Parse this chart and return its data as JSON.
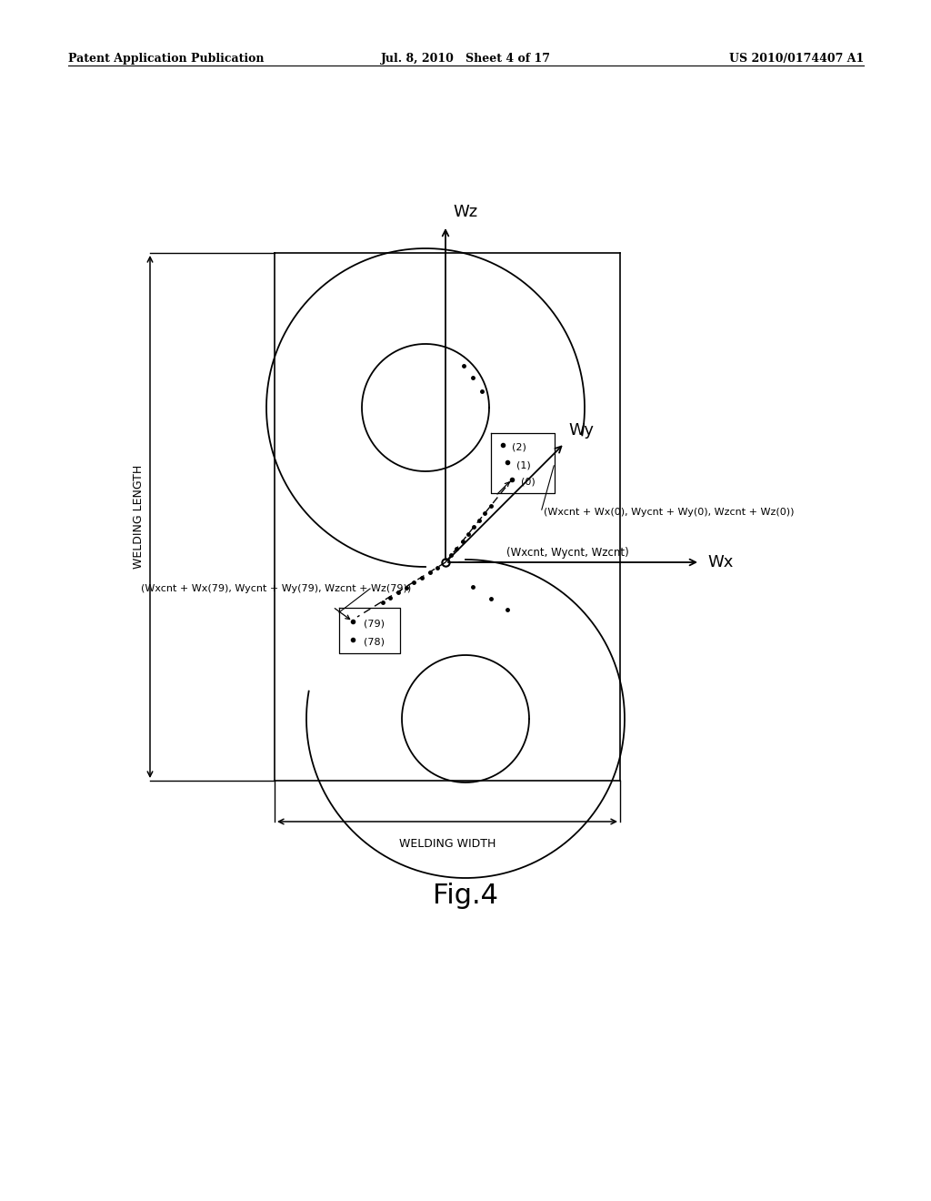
{
  "title": "Fig.4",
  "header_left": "Patent Application Publication",
  "header_mid": "Jul. 8, 2010   Sheet 4 of 17",
  "header_right": "US 2010/0174407 A1",
  "bg_color": "#ffffff",
  "fg_color": "#000000",
  "wz_label": "Wz",
  "wy_label": "Wy",
  "wx_label": "Wx",
  "origin_label": "(Wxcnt, Wycnt, Wzcnt)",
  "point0_label": "(Wxcnt + Wx(0), Wycnt + Wy(0), Wzcnt + Wz(0))",
  "point79_label": "(Wxcnt + Wx(79), Wycnt + Wy(79), Wzcnt + Wz(79))",
  "welding_length_label": "WELDING LENGTH",
  "welding_width_label": "WELDING WIDTH"
}
